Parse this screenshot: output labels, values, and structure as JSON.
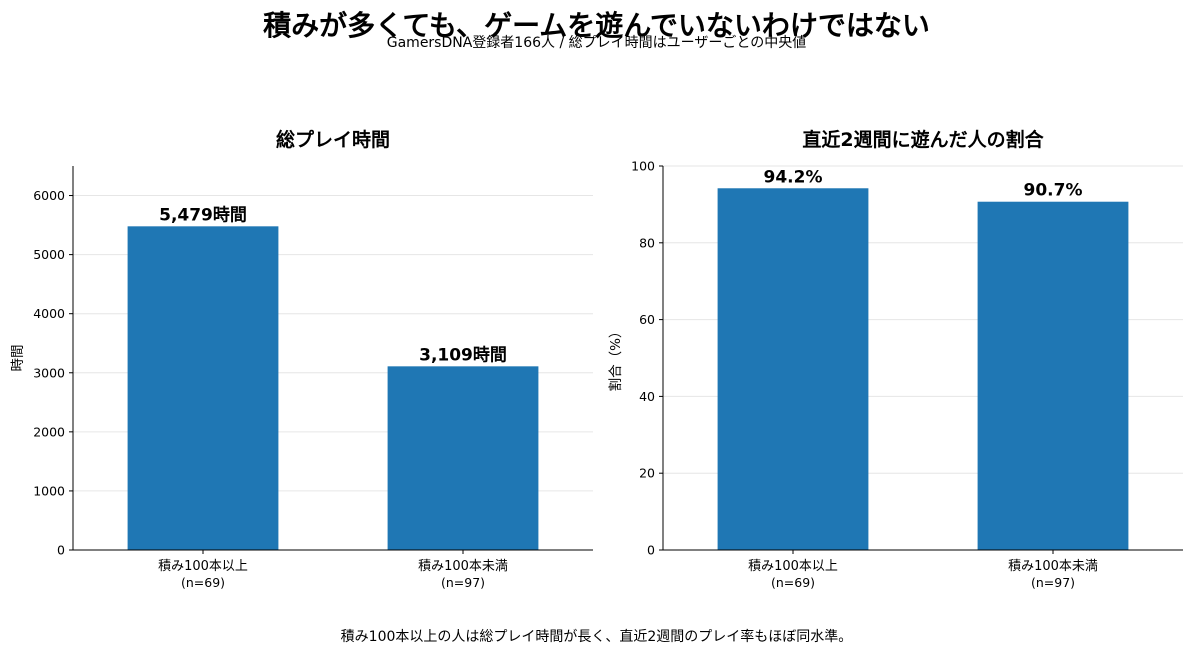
{
  "header": {
    "title": "積みが多くても、ゲームを遊んでいないわけではない",
    "subtitle": "GamersDNA登録者166人 / 総プレイ時間はユーザーごとの中央値"
  },
  "footnote": "積み100本以上の人は総プレイ時間が長く、直近2週間のプレイ率もほぼ同水準。",
  "colors": {
    "bar": "#1f77b4",
    "grid": "#e6e6e6",
    "axis": "#000000"
  },
  "chart_data": [
    {
      "type": "bar",
      "title": "総プレイ時間",
      "ylabel": "時間",
      "ylim": [
        0,
        6500
      ],
      "yticks": [
        0,
        1000,
        2000,
        3000,
        4000,
        5000,
        6000
      ],
      "grid": true,
      "categories": [
        {
          "line1": "積み100本以上",
          "line2": "(n=69)"
        },
        {
          "line1": "積み100本未満",
          "line2": "(n=97)"
        }
      ],
      "values": [
        5479,
        3109
      ],
      "value_labels": [
        "5,479時間",
        "3,109時間"
      ]
    },
    {
      "type": "bar",
      "title": "直近2週間に遊んだ人の割合",
      "ylabel": "割合（%）",
      "ylim": [
        0,
        100
      ],
      "yticks": [
        0,
        20,
        40,
        60,
        80,
        100
      ],
      "grid": true,
      "categories": [
        {
          "line1": "積み100本以上",
          "line2": "(n=69)"
        },
        {
          "line1": "積み100本未満",
          "line2": "(n=97)"
        }
      ],
      "values": [
        94.2,
        90.7
      ],
      "value_labels": [
        "94.2%",
        "90.7%"
      ]
    }
  ]
}
